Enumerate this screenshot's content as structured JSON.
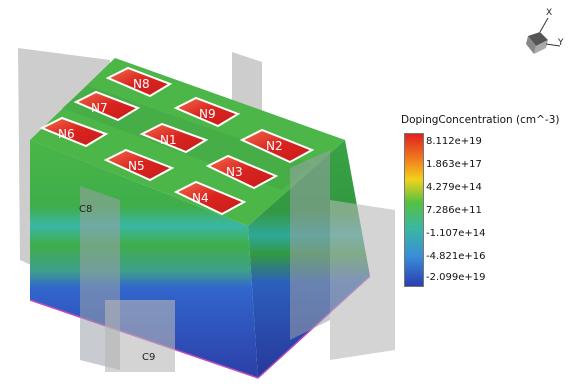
{
  "plot": {
    "implant_labels": [
      "N1",
      "N2",
      "N3",
      "N4",
      "N5",
      "N6",
      "N7",
      "N8",
      "N9"
    ],
    "cut_planes": [
      "C8",
      "C9"
    ]
  },
  "legend": {
    "title": "DopingConcentration (cm^-3)",
    "ticks": [
      "8.112e+19",
      "1.863e+17",
      "4.279e+14",
      "7.286e+11",
      "-1.107e+14",
      "-4.821e+16",
      "-2.099e+19"
    ],
    "colors": [
      "#e02020",
      "#f07a1e",
      "#f2d21a",
      "#57c043",
      "#39b8a2",
      "#3a8fd8",
      "#2b3fb0"
    ]
  },
  "axes": {
    "x": "X",
    "y": "Y"
  }
}
